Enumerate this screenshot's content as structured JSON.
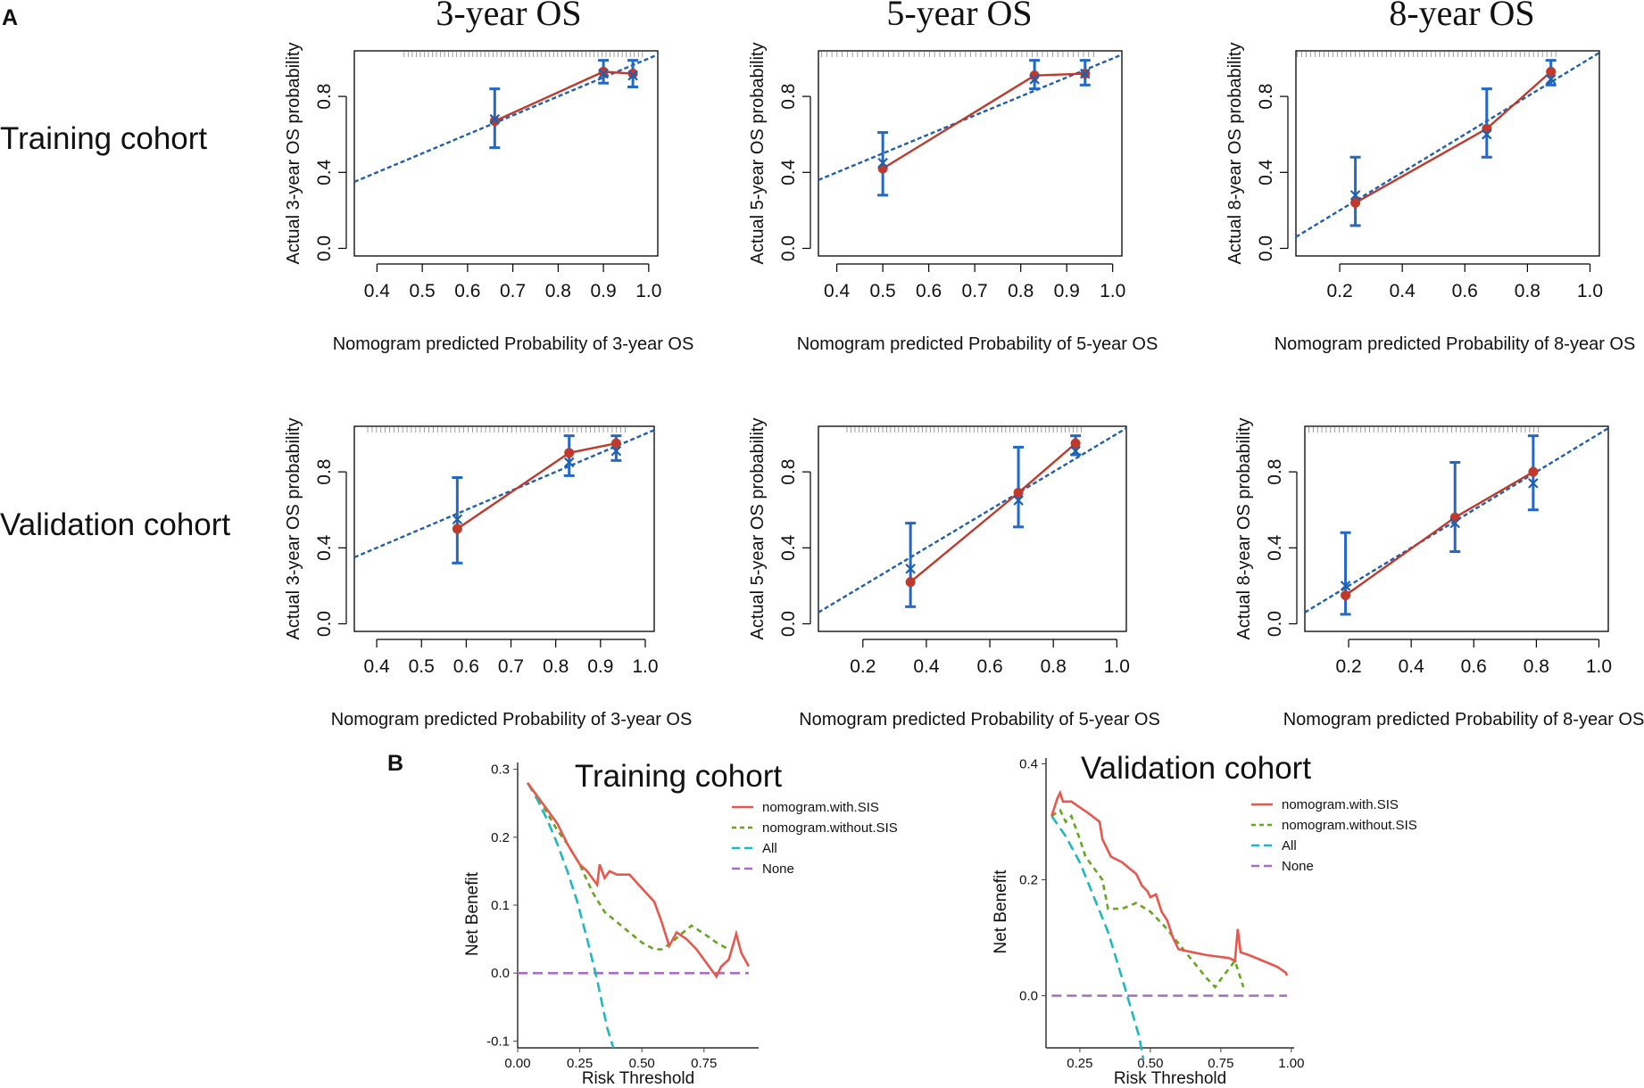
{
  "panel_labels": {
    "a": "A",
    "b": "B"
  },
  "row_labels": [
    "Training cohort",
    "Validation cohort"
  ],
  "chart_data": [
    {
      "type": "scatter",
      "id": "cal-train-3",
      "title": "3-year OS",
      "xlabel": "Nomogram predicted Probability of 3-year OS",
      "ylabel": "Actual 3-year OS probability",
      "xlim": [
        0.35,
        1.02
      ],
      "ylim": [
        0.0,
        1.0
      ],
      "xticks": [
        0.4,
        0.5,
        0.6,
        0.7,
        0.8,
        0.9,
        1.0
      ],
      "yticks": [
        0.0,
        0.4,
        0.8
      ],
      "points": [
        {
          "pred": 0.66,
          "obs": 0.67,
          "obs_corr": 0.68,
          "lo": 0.53,
          "hi": 0.84
        },
        {
          "pred": 0.9,
          "obs": 0.93,
          "obs_corr": 0.92,
          "lo": 0.87,
          "hi": 0.99
        },
        {
          "pred": 0.965,
          "obs": 0.92,
          "obs_corr": 0.91,
          "lo": 0.85,
          "hi": 0.99
        }
      ]
    },
    {
      "type": "scatter",
      "id": "cal-train-5",
      "title": "5-year OS",
      "xlabel": "Nomogram predicted Probability of 5-year OS",
      "ylabel": "Actual 5-year OS probability",
      "xlim": [
        0.36,
        1.02
      ],
      "ylim": [
        0.0,
        1.0
      ],
      "xticks": [
        0.4,
        0.5,
        0.6,
        0.7,
        0.8,
        0.9,
        1.0
      ],
      "yticks": [
        0.0,
        0.4,
        0.8
      ],
      "points": [
        {
          "pred": 0.5,
          "obs": 0.42,
          "obs_corr": 0.45,
          "lo": 0.28,
          "hi": 0.61
        },
        {
          "pred": 0.83,
          "obs": 0.91,
          "obs_corr": 0.89,
          "lo": 0.84,
          "hi": 0.99
        },
        {
          "pred": 0.94,
          "obs": 0.92,
          "obs_corr": 0.92,
          "lo": 0.86,
          "hi": 0.99
        }
      ]
    },
    {
      "type": "scatter",
      "id": "cal-train-8",
      "title": "8-year OS",
      "xlabel": "Nomogram predicted Probability of 8-year OS",
      "ylabel": "Actual 8-year OS probability",
      "xlim": [
        0.06,
        1.03
      ],
      "ylim": [
        0.0,
        1.0
      ],
      "xticks": [
        0.2,
        0.4,
        0.6,
        0.8,
        1.0
      ],
      "yticks": [
        0.0,
        0.4,
        0.8
      ],
      "points": [
        {
          "pred": 0.25,
          "obs": 0.24,
          "obs_corr": 0.28,
          "lo": 0.12,
          "hi": 0.48
        },
        {
          "pred": 0.67,
          "obs": 0.63,
          "obs_corr": 0.6,
          "lo": 0.48,
          "hi": 0.84
        },
        {
          "pred": 0.875,
          "obs": 0.93,
          "obs_corr": 0.89,
          "lo": 0.86,
          "hi": 0.99
        }
      ]
    },
    {
      "type": "scatter",
      "id": "cal-val-3",
      "title": "",
      "xlabel": "Nomogram predicted Probability of 3-year OS",
      "ylabel": "Actual 3-year OS probability",
      "xlim": [
        0.35,
        1.02
      ],
      "ylim": [
        0.0,
        1.0
      ],
      "xticks": [
        0.4,
        0.5,
        0.6,
        0.7,
        0.8,
        0.9,
        1.0
      ],
      "yticks": [
        0.0,
        0.4,
        0.8
      ],
      "points": [
        {
          "pred": 0.58,
          "obs": 0.5,
          "obs_corr": 0.55,
          "lo": 0.32,
          "hi": 0.77
        },
        {
          "pred": 0.83,
          "obs": 0.9,
          "obs_corr": 0.85,
          "lo": 0.78,
          "hi": 0.99
        },
        {
          "pred": 0.935,
          "obs": 0.95,
          "obs_corr": 0.91,
          "lo": 0.86,
          "hi": 0.99
        }
      ]
    },
    {
      "type": "scatter",
      "id": "cal-val-5",
      "title": "",
      "xlabel": "Nomogram predicted Probability of 5-year OS",
      "ylabel": "Actual 5-year OS probability",
      "xlim": [
        0.06,
        1.03
      ],
      "ylim": [
        0.0,
        1.0
      ],
      "xticks": [
        0.2,
        0.4,
        0.6,
        0.8,
        1.0
      ],
      "yticks": [
        0.0,
        0.4,
        0.8
      ],
      "points": [
        {
          "pred": 0.35,
          "obs": 0.22,
          "obs_corr": 0.29,
          "lo": 0.09,
          "hi": 0.53
        },
        {
          "pred": 0.69,
          "obs": 0.69,
          "obs_corr": 0.65,
          "lo": 0.51,
          "hi": 0.93
        },
        {
          "pred": 0.87,
          "obs": 0.95,
          "obs_corr": 0.91,
          "lo": 0.89,
          "hi": 0.99
        }
      ]
    },
    {
      "type": "scatter",
      "id": "cal-val-8",
      "title": "",
      "xlabel": "Nomogram predicted Probability of 8-year OS",
      "ylabel": "Actual 8-year OS probability",
      "xlim": [
        0.06,
        1.03
      ],
      "ylim": [
        0.0,
        1.0
      ],
      "xticks": [
        0.2,
        0.4,
        0.6,
        0.8,
        1.0
      ],
      "yticks": [
        0.0,
        0.4,
        0.8
      ],
      "points": [
        {
          "pred": 0.19,
          "obs": 0.15,
          "obs_corr": 0.2,
          "lo": 0.05,
          "hi": 0.48
        },
        {
          "pred": 0.54,
          "obs": 0.56,
          "obs_corr": 0.53,
          "lo": 0.38,
          "hi": 0.85
        },
        {
          "pred": 0.79,
          "obs": 0.8,
          "obs_corr": 0.74,
          "lo": 0.6,
          "hi": 0.99
        }
      ]
    },
    {
      "type": "line",
      "id": "dca-train",
      "title": "Training cohort",
      "xlabel": "Risk Threshold",
      "ylabel": "Net Benefit",
      "xlim": [
        0.0,
        0.97
      ],
      "ylim": [
        -0.11,
        0.31
      ],
      "xticks": [
        0.0,
        0.25,
        0.5,
        0.75
      ],
      "xticklabels": [
        "0.00",
        "0.25",
        "0.50",
        "0.75"
      ],
      "yticks": [
        -0.1,
        0.0,
        0.1,
        0.2,
        0.3
      ],
      "yticklabels": [
        "-0.1",
        "0.0",
        "0.1",
        "0.2",
        "0.3"
      ],
      "series": [
        {
          "name": "nomogram.with.SIS",
          "color": "#e8574d",
          "dash": "none",
          "points": [
            [
              0.04,
              0.28
            ],
            [
              0.08,
              0.26
            ],
            [
              0.12,
              0.24
            ],
            [
              0.16,
              0.22
            ],
            [
              0.2,
              0.19
            ],
            [
              0.25,
              0.16
            ],
            [
              0.28,
              0.15
            ],
            [
              0.3,
              0.14
            ],
            [
              0.32,
              0.13
            ],
            [
              0.33,
              0.16
            ],
            [
              0.35,
              0.14
            ],
            [
              0.37,
              0.15
            ],
            [
              0.4,
              0.145
            ],
            [
              0.45,
              0.145
            ],
            [
              0.5,
              0.125
            ],
            [
              0.55,
              0.105
            ],
            [
              0.58,
              0.075
            ],
            [
              0.61,
              0.04
            ],
            [
              0.64,
              0.06
            ],
            [
              0.68,
              0.05
            ],
            [
              0.72,
              0.035
            ],
            [
              0.75,
              0.02
            ],
            [
              0.78,
              0.005
            ],
            [
              0.8,
              -0.005
            ],
            [
              0.82,
              0.01
            ],
            [
              0.85,
              0.02
            ],
            [
              0.88,
              0.058
            ],
            [
              0.9,
              0.03
            ],
            [
              0.93,
              0.01
            ]
          ]
        },
        {
          "name": "nomogram.without.SIS",
          "color": "#66a61e",
          "dash": "6 5",
          "points": [
            [
              0.04,
              0.28
            ],
            [
              0.08,
              0.26
            ],
            [
              0.12,
              0.235
            ],
            [
              0.16,
              0.21
            ],
            [
              0.2,
              0.19
            ],
            [
              0.25,
              0.16
            ],
            [
              0.3,
              0.12
            ],
            [
              0.35,
              0.09
            ],
            [
              0.4,
              0.075
            ],
            [
              0.45,
              0.06
            ],
            [
              0.5,
              0.045
            ],
            [
              0.55,
              0.035
            ],
            [
              0.58,
              0.035
            ],
            [
              0.62,
              0.045
            ],
            [
              0.65,
              0.055
            ],
            [
              0.7,
              0.07
            ],
            [
              0.75,
              0.058
            ],
            [
              0.8,
              0.045
            ],
            [
              0.85,
              0.035
            ]
          ]
        },
        {
          "name": "All",
          "color": "#1fb8c2",
          "dash": "11 6",
          "points": [
            [
              0.04,
              0.28
            ],
            [
              0.08,
              0.255
            ],
            [
              0.12,
              0.225
            ],
            [
              0.16,
              0.19
            ],
            [
              0.2,
              0.15
            ],
            [
              0.24,
              0.105
            ],
            [
              0.28,
              0.05
            ],
            [
              0.3,
              0.02
            ],
            [
              0.32,
              -0.01
            ],
            [
              0.34,
              -0.045
            ],
            [
              0.36,
              -0.08
            ],
            [
              0.385,
              -0.11
            ]
          ]
        },
        {
          "name": "None",
          "color": "#a56cc1",
          "dash": "11 6",
          "points": [
            [
              0.0,
              0.0
            ],
            [
              0.93,
              0.0
            ]
          ]
        }
      ]
    },
    {
      "type": "line",
      "id": "dca-val",
      "title": "Validation cohort",
      "xlabel": "Risk Threshold",
      "ylabel": "Net Benefit",
      "xlim": [
        0.13,
        1.01
      ],
      "ylim": [
        -0.09,
        0.41
      ],
      "xticks": [
        0.25,
        0.5,
        0.75,
        1.0
      ],
      "xticklabels": [
        "0.25",
        "0.50",
        "0.75",
        "1.00"
      ],
      "yticks": [
        0.0,
        0.2,
        0.4
      ],
      "yticklabels": [
        "0.0",
        "0.2",
        "0.4"
      ],
      "series": [
        {
          "name": "nomogram.with.SIS",
          "color": "#e8574d",
          "dash": "none",
          "points": [
            [
              0.15,
              0.31
            ],
            [
              0.17,
              0.34
            ],
            [
              0.18,
              0.35
            ],
            [
              0.19,
              0.335
            ],
            [
              0.22,
              0.335
            ],
            [
              0.25,
              0.325
            ],
            [
              0.28,
              0.315
            ],
            [
              0.32,
              0.3
            ],
            [
              0.33,
              0.27
            ],
            [
              0.36,
              0.24
            ],
            [
              0.4,
              0.23
            ],
            [
              0.45,
              0.21
            ],
            [
              0.47,
              0.19
            ],
            [
              0.49,
              0.18
            ],
            [
              0.5,
              0.17
            ],
            [
              0.52,
              0.175
            ],
            [
              0.54,
              0.145
            ],
            [
              0.56,
              0.13
            ],
            [
              0.58,
              0.1
            ],
            [
              0.6,
              0.08
            ],
            [
              0.65,
              0.075
            ],
            [
              0.7,
              0.07
            ],
            [
              0.78,
              0.065
            ],
            [
              0.8,
              0.06
            ],
            [
              0.81,
              0.115
            ],
            [
              0.82,
              0.075
            ],
            [
              0.85,
              0.07
            ],
            [
              0.9,
              0.06
            ],
            [
              0.95,
              0.05
            ],
            [
              0.98,
              0.04
            ],
            [
              0.985,
              0.035
            ]
          ]
        },
        {
          "name": "nomogram.without.SIS",
          "color": "#66a61e",
          "dash": "6 5",
          "points": [
            [
              0.15,
              0.31
            ],
            [
              0.18,
              0.32
            ],
            [
              0.2,
              0.3
            ],
            [
              0.22,
              0.31
            ],
            [
              0.25,
              0.27
            ],
            [
              0.27,
              0.24
            ],
            [
              0.3,
              0.22
            ],
            [
              0.33,
              0.2
            ],
            [
              0.35,
              0.15
            ],
            [
              0.4,
              0.15
            ],
            [
              0.45,
              0.16
            ],
            [
              0.5,
              0.145
            ],
            [
              0.55,
              0.12
            ],
            [
              0.6,
              0.09
            ],
            [
              0.65,
              0.06
            ],
            [
              0.7,
              0.03
            ],
            [
              0.73,
              0.015
            ],
            [
              0.76,
              0.035
            ],
            [
              0.8,
              0.06
            ],
            [
              0.83,
              0.015
            ]
          ]
        },
        {
          "name": "All",
          "color": "#1fb8c2",
          "dash": "11 6",
          "points": [
            [
              0.15,
              0.31
            ],
            [
              0.2,
              0.275
            ],
            [
              0.25,
              0.23
            ],
            [
              0.3,
              0.17
            ],
            [
              0.35,
              0.11
            ],
            [
              0.4,
              0.03
            ],
            [
              0.43,
              -0.02
            ],
            [
              0.46,
              -0.07
            ],
            [
              0.475,
              -0.11
            ]
          ]
        },
        {
          "name": "None",
          "color": "#a56cc1",
          "dash": "11 6",
          "points": [
            [
              0.15,
              0.0
            ],
            [
              0.985,
              0.0
            ]
          ]
        }
      ]
    }
  ]
}
